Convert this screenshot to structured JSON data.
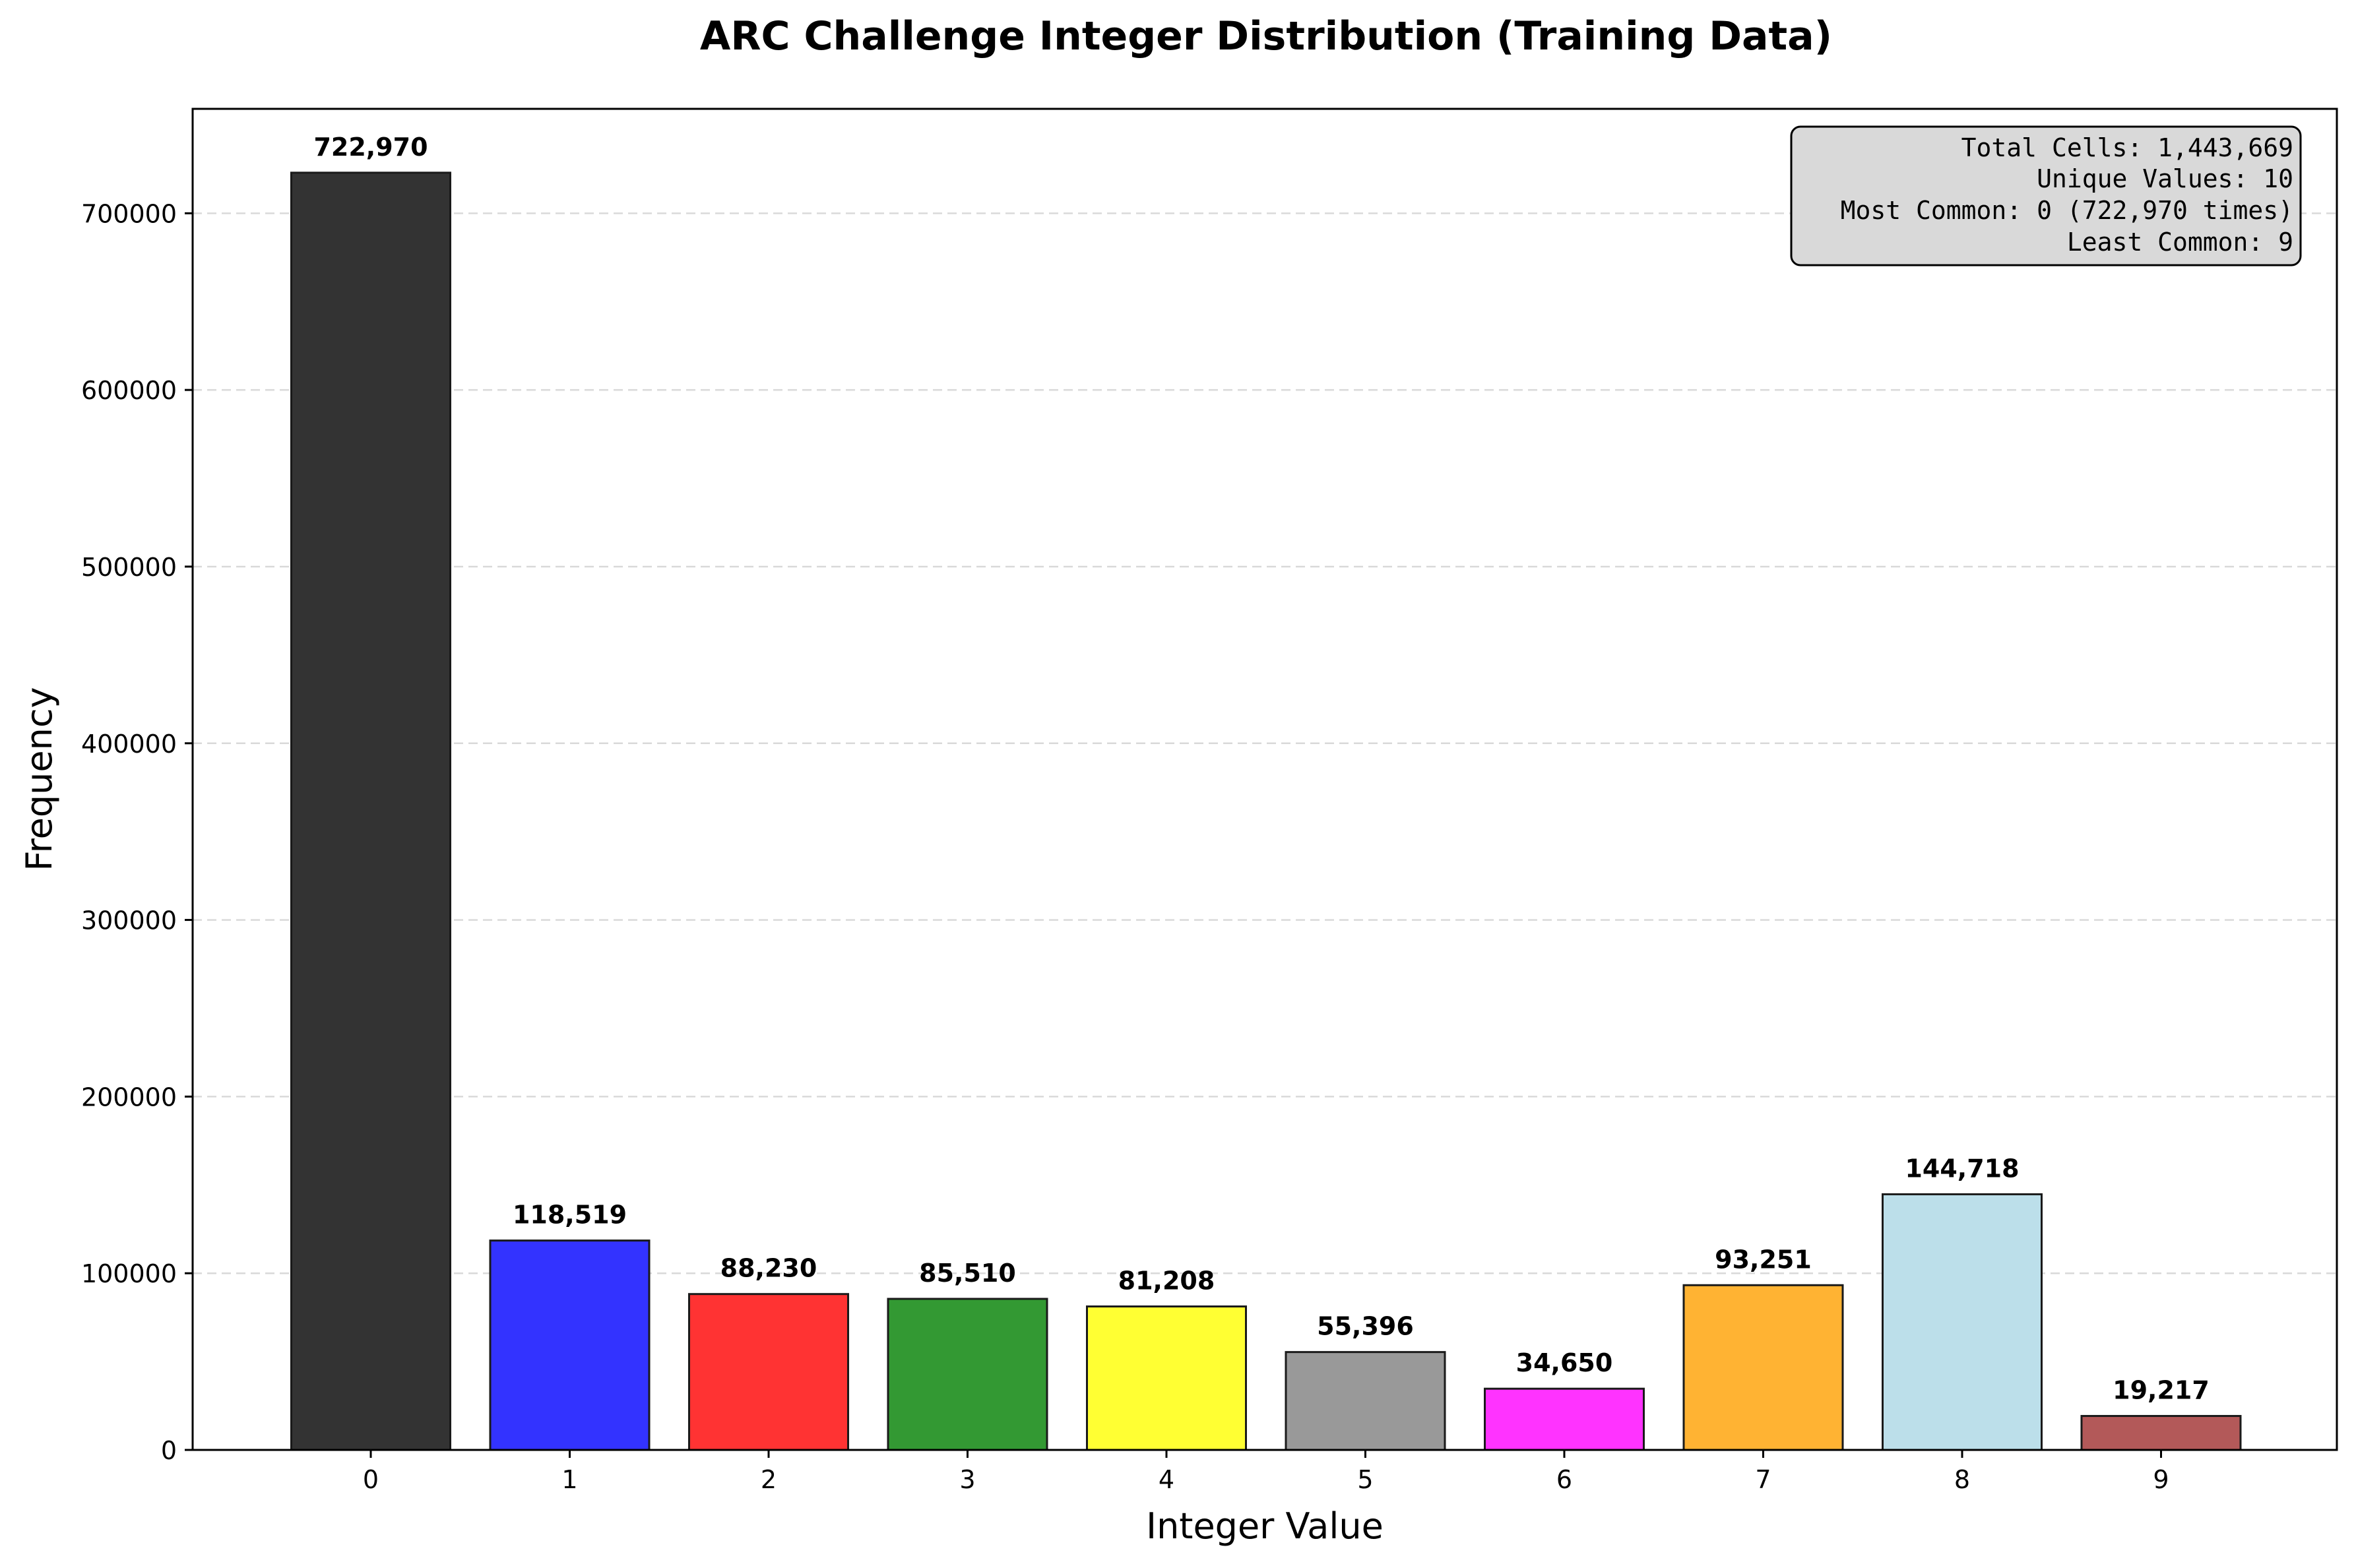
{
  "chart_data": {
    "type": "bar",
    "title": "ARC Challenge Integer Distribution (Training Data)",
    "xlabel": "Integer Value",
    "ylabel": "Frequency",
    "categories": [
      "0",
      "1",
      "2",
      "3",
      "4",
      "5",
      "6",
      "7",
      "8",
      "9"
    ],
    "values": [
      722970,
      118519,
      88230,
      85510,
      81208,
      55396,
      34650,
      93251,
      144718,
      19217
    ],
    "data_labels": [
      "722,970",
      "118,519",
      "88,230",
      "85,510",
      "81,208",
      "55,396",
      "34,650",
      "93,251",
      "144,718",
      "19,217"
    ],
    "colors": [
      "#333333",
      "#3333ff",
      "#ff3333",
      "#339933",
      "#ffff33",
      "#999999",
      "#ff33ff",
      "#ffb333",
      "#bcdfea",
      "#b35959"
    ],
    "ylim": [
      0,
      759118
    ],
    "yticks": [
      0,
      100000,
      200000,
      300000,
      400000,
      500000,
      600000,
      700000
    ],
    "ytick_labels": [
      "0",
      "100000",
      "200000",
      "300000",
      "400000",
      "500000",
      "600000",
      "700000"
    ],
    "grid": "y-dashed",
    "stats_box": {
      "position": "top-right",
      "lines": [
        "Total Cells: 1,443,669",
        "Unique Values: 10",
        "Most Common: 0 (722,970 times)",
        "Least Common: 9"
      ]
    }
  }
}
